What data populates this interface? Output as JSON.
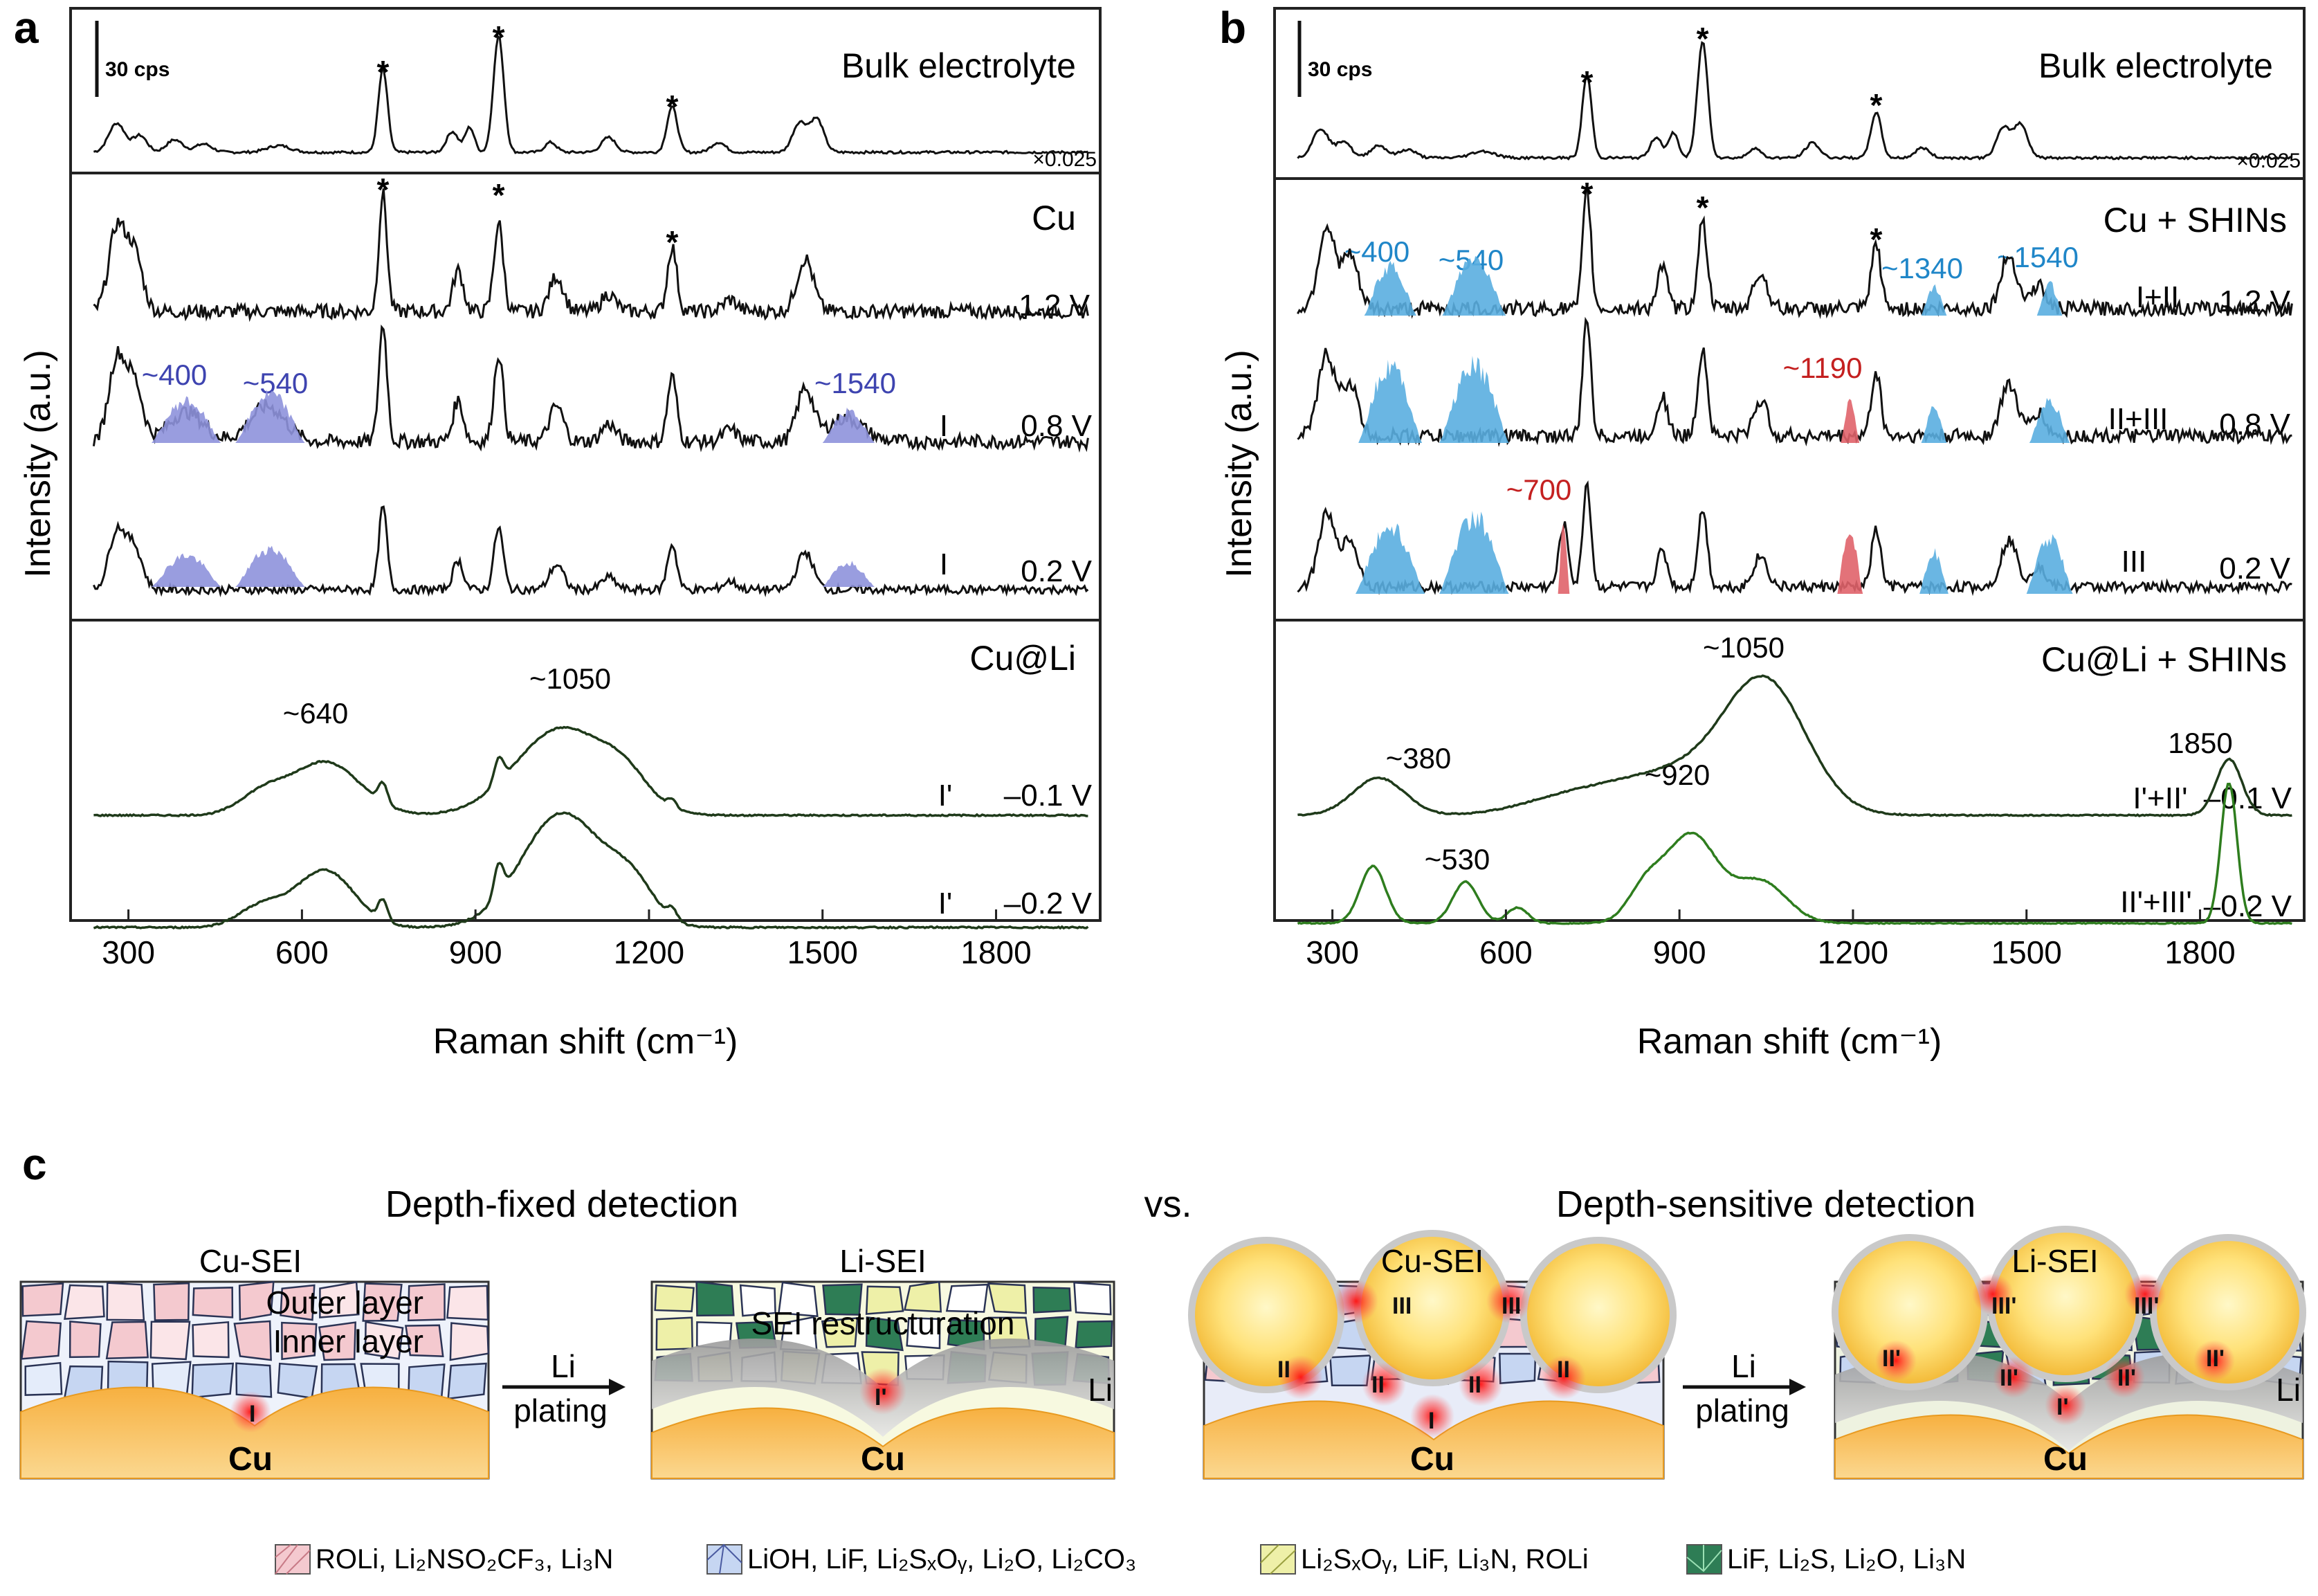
{
  "figure": {
    "panel_labels": [
      "a",
      "b",
      "c"
    ],
    "scale_bar": "30 cps",
    "y_axis_title": "Intensity (a.u.)",
    "x_axis_title": "Raman shift (cm⁻¹)",
    "x_ticks": [
      "300",
      "600",
      "900",
      "1200",
      "1500",
      "1800"
    ]
  },
  "panel_a": {
    "bulk": {
      "title": "Bulk electrolyte",
      "scale": "×0.025"
    },
    "cu": {
      "title": "Cu",
      "spectra": [
        {
          "label": "",
          "voltage": "1.2 V"
        },
        {
          "label": "I",
          "voltage": "0.8 V"
        },
        {
          "label": "I",
          "voltage": "0.2 V"
        }
      ],
      "peaks": [
        "~400",
        "~540",
        "~1540"
      ]
    },
    "culi": {
      "title": "Cu@Li",
      "spectra": [
        {
          "label": "I'",
          "voltage": "–0.1 V"
        },
        {
          "label": "I'",
          "voltage": "–0.2 V"
        }
      ],
      "peaks": [
        "~640",
        "~1050"
      ]
    }
  },
  "panel_b": {
    "bulk": {
      "title": "Bulk electrolyte",
      "scale": "×0.025"
    },
    "cu": {
      "title": "Cu + SHINs",
      "spectra": [
        {
          "label": "I+II",
          "voltage": "1.2 V"
        },
        {
          "label": "II+III",
          "voltage": "0.8 V"
        },
        {
          "label": "III",
          "voltage": "0.2 V"
        }
      ],
      "peaks_blue": [
        "~400",
        "~540",
        "~1340",
        "~1540"
      ],
      "peaks_red": [
        "~1190",
        "~700"
      ]
    },
    "culi": {
      "title": "Cu@Li + SHINs",
      "spectra": [
        {
          "label": "I'+II'",
          "voltage": "–0.1 V"
        },
        {
          "label": "II'+III'",
          "voltage": "–0.2 V"
        }
      ],
      "peaks": [
        "~1050",
        "~380",
        "~920",
        "~530",
        "1850"
      ]
    }
  },
  "panel_c": {
    "left_title": "Depth-fixed detection",
    "vs": "vs.",
    "right_title": "Depth-sensitive detection",
    "scenes": [
      {
        "title": "Cu-SEI",
        "outer": "Outer layer",
        "inner": "Inner layer",
        "substrate": "Cu"
      },
      {
        "title": "Li-SEI",
        "restruct": "SEI restructuration",
        "li": "Li",
        "substrate": "Cu"
      },
      {
        "title": "Cu-SEI",
        "substrate": "Cu"
      },
      {
        "title": "Li-SEI",
        "li": "Li",
        "substrate": "Cu"
      }
    ],
    "arrow_top": "Li",
    "arrow_bottom": "plating",
    "region_labels": {
      "I": "I",
      "II": "II",
      "III": "III",
      "Ip": "I'",
      "IIp": "II'",
      "IIIp": "III'"
    },
    "legend": [
      {
        "text": "ROLi, Li₂NSO₂CF₃, Li₃N",
        "color": "#f4c9cf"
      },
      {
        "text": "LiOH, LiF, Li₂SₓOᵧ, Li₂O, Li₂CO₃",
        "color": "#c6d6f2"
      },
      {
        "text": "Li₂SₓOᵧ, LiF, Li₃N, ROLi",
        "color": "#eef0a8"
      },
      {
        "text": "LiF, Li₂S, Li₂O,  Li₃N",
        "color": "#2e7d55"
      }
    ]
  },
  "colors": {
    "blue_fill": "#5aaee0",
    "purple_fill": "#8e92dc",
    "red_fill": "#e0636a",
    "green_line": "#2e7d1e",
    "sub": "#f3a635"
  },
  "chart_data": [
    {
      "type": "line",
      "title": "a",
      "xlabel": "Raman shift (cm⁻¹)",
      "ylabel": "Intensity (a.u.)",
      "xlim": [
        200,
        1980
      ],
      "series": [
        {
          "name": "Bulk electrolyte",
          "peaks": [
            [
              280,
              0.3
            ],
            [
              380,
              0.15
            ],
            [
              740,
              0.8
            ],
            [
              870,
              0.25
            ],
            [
              940,
              1.0
            ],
            [
              1130,
              0.15
            ],
            [
              1240,
              0.5
            ],
            [
              1470,
              0.35
            ]
          ]
        },
        {
          "name": "Cu 1.2 V",
          "peaks": [
            [
              280,
              0.6
            ],
            [
              740,
              1.0
            ],
            [
              870,
              0.4
            ],
            [
              940,
              0.8
            ],
            [
              1040,
              0.3
            ],
            [
              1240,
              0.6
            ],
            [
              1470,
              0.5
            ]
          ]
        },
        {
          "name": "Cu 0.8 V",
          "peaks": [
            [
              280,
              0.6
            ],
            [
              400,
              0.45
            ],
            [
              540,
              0.45
            ],
            [
              740,
              1.0
            ],
            [
              870,
              0.4
            ],
            [
              940,
              0.8
            ],
            [
              1240,
              0.5
            ],
            [
              1540,
              0.35
            ]
          ]
        },
        {
          "name": "Cu 0.2 V",
          "peaks": [
            [
              280,
              0.5
            ],
            [
              400,
              0.35
            ],
            [
              540,
              0.4
            ],
            [
              740,
              0.8
            ],
            [
              870,
              0.35
            ],
            [
              940,
              0.6
            ],
            [
              1240,
              0.4
            ],
            [
              1540,
              0.25
            ]
          ]
        },
        {
          "name": "Cu@Li –0.1 V",
          "peaks": [
            [
              640,
              0.5
            ],
            [
              740,
              0.2
            ],
            [
              940,
              0.25
            ],
            [
              1050,
              0.7
            ]
          ]
        },
        {
          "name": "Cu@Li –0.2 V",
          "peaks": [
            [
              640,
              0.5
            ],
            [
              740,
              0.2
            ],
            [
              940,
              0.3
            ],
            [
              1050,
              1.0
            ]
          ]
        }
      ]
    },
    {
      "type": "line",
      "title": "b",
      "xlabel": "Raman shift (cm⁻¹)",
      "ylabel": "Intensity (a.u.)",
      "xlim": [
        200,
        1980
      ],
      "series": [
        {
          "name": "Bulk electrolyte",
          "peaks": [
            [
              280,
              0.3
            ],
            [
              740,
              0.8
            ],
            [
              870,
              0.25
            ],
            [
              940,
              1.0
            ],
            [
              1240,
              0.5
            ],
            [
              1470,
              0.35
            ]
          ]
        },
        {
          "name": "Cu + SHINs 1.2 V",
          "peaks": [
            [
              300,
              0.5
            ],
            [
              400,
              0.4
            ],
            [
              540,
              0.5
            ],
            [
              740,
              1.0
            ],
            [
              940,
              0.8
            ],
            [
              1240,
              0.6
            ],
            [
              1340,
              0.3
            ],
            [
              1540,
              0.3
            ]
          ]
        },
        {
          "name": "Cu + SHINs 0.8 V",
          "peaks": [
            [
              300,
              0.5
            ],
            [
              400,
              0.6
            ],
            [
              540,
              0.6
            ],
            [
              740,
              1.0
            ],
            [
              940,
              0.8
            ],
            [
              1190,
              0.3
            ],
            [
              1240,
              0.4
            ],
            [
              1340,
              0.3
            ],
            [
              1540,
              0.4
            ]
          ]
        },
        {
          "name": "Cu + SHINs 0.2 V",
          "peaks": [
            [
              300,
              0.5
            ],
            [
              400,
              0.5
            ],
            [
              540,
              0.6
            ],
            [
              700,
              0.6
            ],
            [
              740,
              0.9
            ],
            [
              940,
              0.6
            ],
            [
              1190,
              0.4
            ],
            [
              1340,
              0.35
            ],
            [
              1540,
              0.4
            ]
          ]
        },
        {
          "name": "Cu@Li + SHINs –0.1 V",
          "peaks": [
            [
              380,
              0.3
            ],
            [
              1050,
              1.0
            ],
            [
              1850,
              0.3
            ]
          ]
        },
        {
          "name": "Cu@Li + SHINs –0.2 V",
          "peaks": [
            [
              370,
              0.5
            ],
            [
              530,
              0.4
            ],
            [
              620,
              0.15
            ],
            [
              920,
              0.8
            ],
            [
              1050,
              0.4
            ],
            [
              1850,
              1.0
            ]
          ]
        }
      ]
    }
  ]
}
